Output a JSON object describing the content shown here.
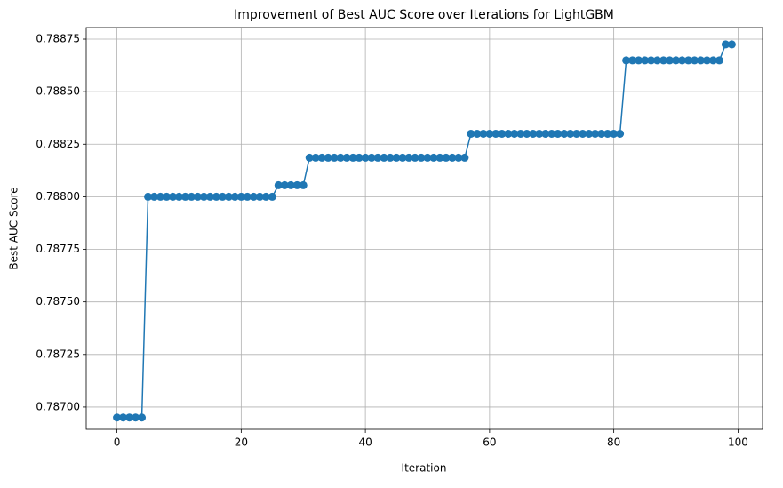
{
  "chart_data": {
    "type": "line",
    "title": "Improvement of Best AUC Score over Iterations for LightGBM",
    "x_label": "Iteration",
    "y_label": "Best AUC Score",
    "x": [
      0,
      1,
      2,
      3,
      4,
      5,
      6,
      7,
      8,
      9,
      10,
      11,
      12,
      13,
      14,
      15,
      16,
      17,
      18,
      19,
      20,
      21,
      22,
      23,
      24,
      25,
      26,
      27,
      28,
      29,
      30,
      31,
      32,
      33,
      34,
      35,
      36,
      37,
      38,
      39,
      40,
      41,
      42,
      43,
      44,
      45,
      46,
      47,
      48,
      49,
      50,
      51,
      52,
      53,
      54,
      55,
      56,
      57,
      58,
      59,
      60,
      61,
      62,
      63,
      64,
      65,
      66,
      67,
      68,
      69,
      70,
      71,
      72,
      73,
      74,
      75,
      76,
      77,
      78,
      79,
      80,
      81,
      82,
      83,
      84,
      85,
      86,
      87,
      88,
      89,
      90,
      91,
      92,
      93,
      94,
      95,
      96,
      97,
      98,
      99
    ],
    "values": [
      0.78695,
      0.78695,
      0.78695,
      0.78695,
      0.78695,
      0.788,
      0.788,
      0.788,
      0.788,
      0.788,
      0.788,
      0.788,
      0.788,
      0.788,
      0.788,
      0.788,
      0.788,
      0.788,
      0.788,
      0.788,
      0.788,
      0.788,
      0.788,
      0.788,
      0.788,
      0.788,
      0.788055,
      0.788055,
      0.788055,
      0.788055,
      0.788055,
      0.788186,
      0.788186,
      0.788186,
      0.788186,
      0.788186,
      0.788186,
      0.788186,
      0.788186,
      0.788186,
      0.788186,
      0.788186,
      0.788186,
      0.788186,
      0.788186,
      0.788186,
      0.788186,
      0.788186,
      0.788186,
      0.788186,
      0.788186,
      0.788186,
      0.788186,
      0.788186,
      0.788186,
      0.788186,
      0.788186,
      0.7883,
      0.7883,
      0.7883,
      0.7883,
      0.7883,
      0.7883,
      0.7883,
      0.7883,
      0.7883,
      0.7883,
      0.7883,
      0.7883,
      0.7883,
      0.7883,
      0.7883,
      0.7883,
      0.7883,
      0.7883,
      0.7883,
      0.7883,
      0.7883,
      0.7883,
      0.7883,
      0.7883,
      0.7883,
      0.788649,
      0.788649,
      0.788649,
      0.788649,
      0.788649,
      0.788649,
      0.788649,
      0.788649,
      0.788649,
      0.788649,
      0.788649,
      0.788649,
      0.788649,
      0.788649,
      0.788649,
      0.788649,
      0.788725,
      0.788725
    ],
    "color": "#1f77b4",
    "xlim": [
      -4.95,
      103.95
    ],
    "xticks": [
      0,
      20,
      40,
      60,
      80,
      100
    ],
    "ylim": [
      0.786894,
      0.788805
    ],
    "yticks": [
      {
        "value": 0.787,
        "label": "0.78700"
      },
      {
        "value": 0.78725,
        "label": "0.78725"
      },
      {
        "value": 0.7875,
        "label": "0.78750"
      },
      {
        "value": 0.78775,
        "label": "0.78775"
      },
      {
        "value": 0.788,
        "label": "0.78800"
      },
      {
        "value": 0.78825,
        "label": "0.78825"
      },
      {
        "value": 0.7885,
        "label": "0.78850"
      },
      {
        "value": 0.78875,
        "label": "0.78875"
      }
    ],
    "grid": true
  }
}
